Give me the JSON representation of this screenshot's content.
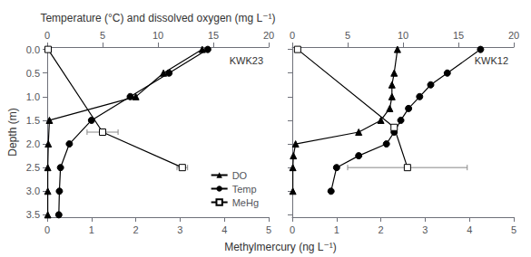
{
  "chart_data": [
    {
      "type": "line",
      "annotation": "KWK23",
      "xlabel": "Methylmercury (ng L⁻¹)",
      "ylabel": "Depth (m)",
      "x2label": "Temperature (°C) and dissolved oxygen (mg L⁻¹)",
      "xlim": [
        0,
        5
      ],
      "xticks": [
        0,
        1,
        2,
        3,
        4,
        5
      ],
      "x2lim": [
        0,
        20
      ],
      "x2ticks": [
        0,
        5,
        10,
        15,
        20
      ],
      "ylim": [
        3.55,
        -0.05
      ],
      "yticks": [
        {
          "value": 0,
          "label": "0.0"
        },
        0.5,
        {
          "value": 1,
          "label": "1.0"
        },
        1.5,
        {
          "value": 2,
          "label": "2.0"
        },
        2.5,
        {
          "value": 3,
          "label": "3.0"
        },
        3.5
      ],
      "grid": false,
      "legend": "lower right",
      "series": [
        {
          "name": "DO",
          "axis": "x2",
          "color": "black",
          "marker": "triangle",
          "x": [
            14.0,
            10.5,
            8.0,
            0.2,
            0.1,
            0.05,
            0.05,
            0.05
          ],
          "y": [
            0.0,
            0.5,
            1.0,
            1.5,
            2.0,
            2.5,
            3.0,
            3.5
          ]
        },
        {
          "name": "Temp",
          "axis": "x2",
          "color": "black",
          "marker": "circle",
          "x": [
            14.5,
            11.0,
            7.5,
            4.0,
            2.0,
            1.2,
            1.1,
            1.05
          ],
          "y": [
            0.0,
            0.5,
            1.0,
            1.5,
            2.0,
            2.5,
            3.0,
            3.5
          ]
        },
        {
          "name": "MeHg",
          "color": "black",
          "marker": "square_open",
          "x": [
            0.02,
            1.25,
            3.05
          ],
          "xerr": [
            0.0,
            0.35,
            0.12
          ],
          "y": [
            0.0,
            1.75,
            2.5
          ]
        }
      ]
    },
    {
      "type": "line",
      "annotation": "KWK12",
      "xlim": [
        0,
        5
      ],
      "xticks": [
        0,
        1,
        2,
        3,
        4,
        5
      ],
      "x2lim": [
        0,
        20
      ],
      "x2ticks": [
        0,
        5,
        10,
        15,
        20
      ],
      "ylim": [
        3.55,
        -0.05
      ],
      "yticks": [
        {
          "value": 0,
          "label": "0.0"
        },
        0.5,
        {
          "value": 1,
          "label": "1.0"
        },
        1.5,
        {
          "value": 2,
          "label": "2.0"
        },
        2.5,
        {
          "value": 3,
          "label": "3.0"
        },
        3.5
      ],
      "grid": false,
      "tick_labels": "x",
      "series": [
        {
          "name": "DO",
          "axis": "x2",
          "color": "black",
          "marker": "triangle",
          "x": [
            9.5,
            9.2,
            9.0,
            9.0,
            8.8,
            8.0,
            6.0,
            0.3,
            0.1,
            0.05,
            0.05
          ],
          "y": [
            0.0,
            0.5,
            0.75,
            1.0,
            1.25,
            1.5,
            1.75,
            2.0,
            2.25,
            2.5,
            3.0
          ]
        },
        {
          "name": "Temp",
          "axis": "x2",
          "color": "black",
          "marker": "circle",
          "x": [
            17.0,
            14.0,
            12.5,
            11.5,
            10.5,
            9.8,
            9.2,
            8.5,
            6.0,
            4.0,
            3.5
          ],
          "y": [
            0.0,
            0.5,
            0.75,
            1.0,
            1.25,
            1.5,
            1.75,
            2.0,
            2.25,
            2.5,
            3.0
          ]
        },
        {
          "name": "MeHg",
          "color": "black",
          "marker": "square_open",
          "x": [
            0.12,
            2.3,
            2.6
          ],
          "xerr": [
            0.0,
            0.0,
            1.35
          ],
          "y": [
            0.0,
            1.65,
            2.5
          ]
        }
      ]
    }
  ]
}
